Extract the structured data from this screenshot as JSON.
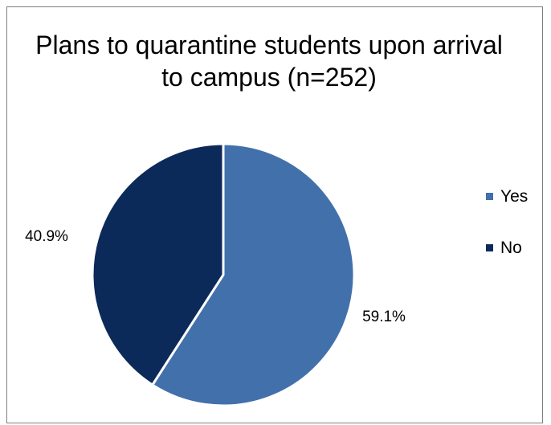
{
  "chart_data": {
    "type": "pie",
    "title": "Plans to quarantine students upon arrival to campus (n=252)",
    "categories": [
      "Yes",
      "No"
    ],
    "values": [
      59.1,
      40.9
    ],
    "labels": [
      "59.1%",
      "40.9%"
    ],
    "colors": [
      "#4270ab",
      "#0c2a59"
    ],
    "start_angle_deg": 0,
    "direction": "clockwise",
    "legend": {
      "position": "right",
      "items": [
        "Yes",
        "No"
      ]
    }
  }
}
